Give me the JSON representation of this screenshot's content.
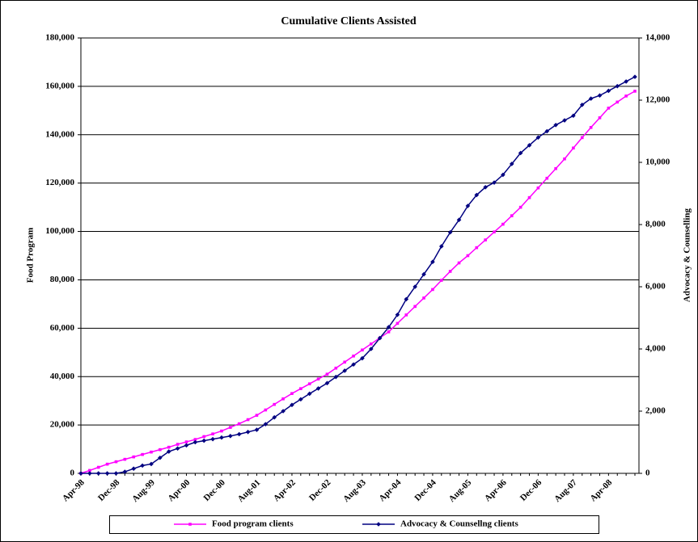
{
  "chart_data": {
    "type": "line",
    "title": "Cumulative Clients Assisted",
    "ylabel": "Food Program",
    "y2label": "Advocacy & Counselling",
    "categories": [
      "Apr-98",
      null,
      null,
      null,
      "Dec-98",
      null,
      null,
      null,
      "Aug-99",
      null,
      null,
      null,
      "Apr-00",
      null,
      null,
      null,
      "Dec-00",
      null,
      null,
      null,
      "Aug-01",
      null,
      null,
      null,
      "Apr-02",
      null,
      null,
      null,
      "Dec-02",
      null,
      null,
      null,
      "Aug-03",
      null,
      null,
      null,
      "Apr-04",
      null,
      null,
      null,
      "Dec-04",
      null,
      null,
      null,
      "Aug-05",
      null,
      null,
      null,
      "Apr-06",
      null,
      null,
      null,
      "Dec-06",
      null,
      null,
      null,
      "Aug-07",
      null,
      null,
      null,
      "Apr-08",
      null,
      null,
      null
    ],
    "series": [
      {
        "name": "Food program clients",
        "color": "#ff00ff",
        "marker": "square",
        "axis": "y",
        "values": [
          0,
          1200,
          2500,
          3800,
          4800,
          5800,
          6800,
          7800,
          8800,
          9800,
          10800,
          12000,
          13000,
          14000,
          15200,
          16300,
          17500,
          19000,
          20500,
          22200,
          24000,
          26200,
          28500,
          30800,
          33000,
          35000,
          37000,
          39000,
          41000,
          43500,
          46000,
          48500,
          51000,
          53500,
          56000,
          58500,
          62000,
          65500,
          69000,
          72500,
          76000,
          79800,
          83500,
          87000,
          90000,
          93300,
          96500,
          99800,
          103000,
          106500,
          110000,
          114000,
          118000,
          122000,
          126000,
          130000,
          134500,
          138800,
          143000,
          147000,
          151000,
          153500,
          156000,
          158000
        ]
      },
      {
        "name": "Advocacy & Counsellng clients",
        "color": "#000080",
        "marker": "diamond",
        "axis": "y2",
        "values": [
          0,
          0,
          0,
          0,
          0,
          50,
          150,
          250,
          300,
          500,
          700,
          800,
          900,
          1000,
          1050,
          1100,
          1150,
          1200,
          1260,
          1330,
          1400,
          1580,
          1800,
          2000,
          2200,
          2380,
          2560,
          2730,
          2900,
          3100,
          3300,
          3500,
          3700,
          4000,
          4350,
          4700,
          5100,
          5600,
          6000,
          6400,
          6800,
          7300,
          7750,
          8150,
          8600,
          8950,
          9200,
          9350,
          9600,
          9950,
          10300,
          10550,
          10800,
          11000,
          11200,
          11350,
          11500,
          11850,
          12050,
          12150,
          12300,
          12450,
          12600,
          12750
        ]
      }
    ],
    "ylim": [
      0,
      180000
    ],
    "yticks": [
      0,
      {
        "value": 20000,
        "label": "20,000"
      },
      {
        "value": 40000,
        "label": "40,000"
      },
      {
        "value": 60000,
        "label": "60,000"
      },
      {
        "value": 80000,
        "label": "80,000"
      },
      {
        "value": 100000,
        "label": "100,000"
      },
      {
        "value": 120000,
        "label": "120,000"
      },
      {
        "value": 140000,
        "label": "140,000"
      },
      {
        "value": 160000,
        "label": "160,000"
      },
      {
        "value": 180000,
        "label": "180,000"
      }
    ],
    "y2lim": [
      0,
      14000
    ],
    "y2ticks": [
      0,
      {
        "value": 2000,
        "label": "2,000"
      },
      {
        "value": 4000,
        "label": "4,000"
      },
      {
        "value": 6000,
        "label": "6,000"
      },
      {
        "value": 8000,
        "label": "8,000"
      },
      {
        "value": 10000,
        "label": "10,000"
      },
      {
        "value": 12000,
        "label": "12,000"
      },
      {
        "value": 14000,
        "label": "14,000"
      }
    ],
    "grid": true,
    "legend": "bottom"
  }
}
